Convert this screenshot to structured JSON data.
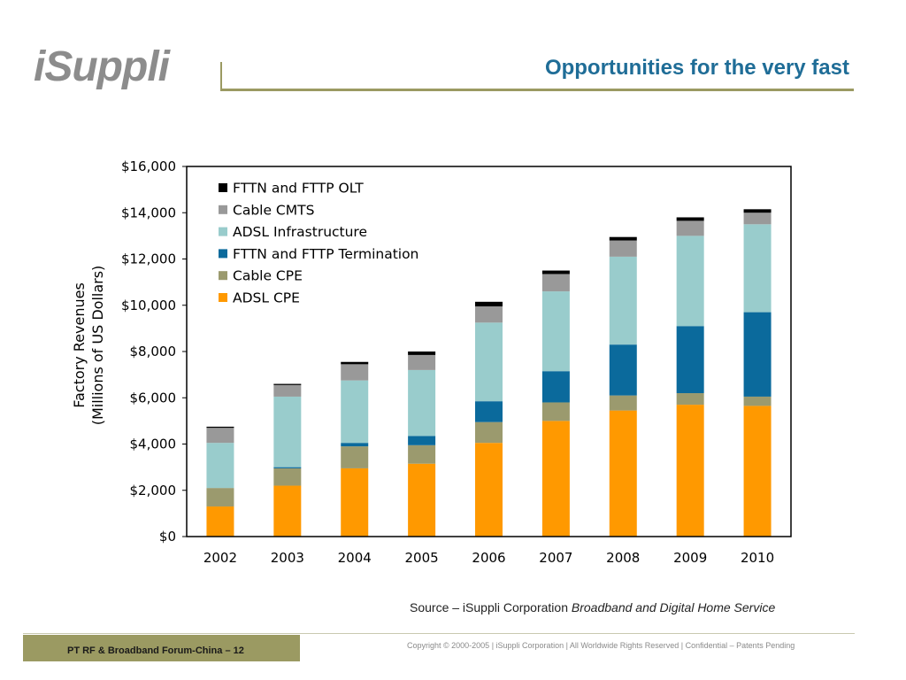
{
  "header": {
    "logo_text": "iSuppli",
    "title": "Opportunities for the very fast"
  },
  "chart_data": {
    "type": "bar",
    "stacked": true,
    "categories": [
      "2002",
      "2003",
      "2004",
      "2005",
      "2006",
      "2007",
      "2008",
      "2009",
      "2010"
    ],
    "ylabel_line1": "Factory Revenues",
    "ylabel_line2": "(Millions of US Dollars)",
    "ylim": [
      0,
      16000
    ],
    "y_ticks": [
      {
        "value": 0,
        "label": "$0"
      },
      {
        "value": 2000,
        "label": "$2,000"
      },
      {
        "value": 4000,
        "label": "$4,000"
      },
      {
        "value": 6000,
        "label": "$6,000"
      },
      {
        "value": 8000,
        "label": "$8,000"
      },
      {
        "value": 10000,
        "label": "$10,000"
      },
      {
        "value": 12000,
        "label": "$12,000"
      },
      {
        "value": 14000,
        "label": "$14,000"
      },
      {
        "value": 16000,
        "label": "$16,000"
      }
    ],
    "grid": false,
    "legend_position": "top-left",
    "series": [
      {
        "name": "ADSL CPE",
        "color": "#ff9900",
        "values": [
          1300,
          2200,
          2950,
          3150,
          4050,
          5000,
          5450,
          5700,
          5650
        ]
      },
      {
        "name": "Cable CPE",
        "color": "#9b9a6e",
        "values": [
          800,
          750,
          950,
          800,
          900,
          800,
          650,
          500,
          400
        ]
      },
      {
        "name": "FTTN and FTTP Termination",
        "color": "#0b6a9c",
        "values": [
          0,
          50,
          150,
          400,
          900,
          1350,
          2200,
          2900,
          3650
        ]
      },
      {
        "name": "ADSL Infrastructure",
        "color": "#99cccc",
        "values": [
          1950,
          3050,
          2700,
          2850,
          3400,
          3450,
          3800,
          3900,
          3800
        ]
      },
      {
        "name": "Cable CMTS",
        "color": "#999999",
        "values": [
          650,
          500,
          700,
          650,
          700,
          750,
          700,
          650,
          500
        ]
      },
      {
        "name": "FTTN and FTTP OLT",
        "color": "#000000",
        "values": [
          50,
          50,
          100,
          150,
          200,
          150,
          150,
          150,
          150
        ]
      }
    ]
  },
  "source": {
    "prefix": "Source – iSuppli Corporation ",
    "italic": "Broadband and Digital Home Service"
  },
  "footer": {
    "label": "PT RF & Broadband Forum-China – 12",
    "copyright": "Copyright © 2000-2005  |  iSuppli Corporation  |  All Worldwide Rights Reserved  |  Confidential – Patents Pending"
  }
}
